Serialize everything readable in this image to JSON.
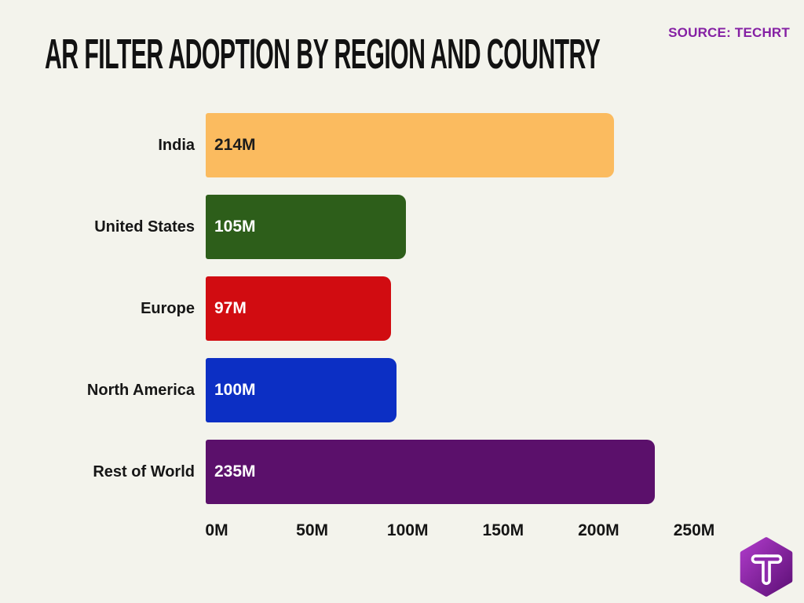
{
  "page": {
    "title": "AR FILTER ADOPTION BY REGION AND COUNTRY",
    "source_label": "SOURCE: TECHRT",
    "background_color": "#F3F3EC",
    "title_color": "#121212",
    "source_color": "#8520A4"
  },
  "chart_data": {
    "type": "bar",
    "orientation": "horizontal",
    "title": "AR FILTER ADOPTION BY REGION AND COUNTRY",
    "categories": [
      "India",
      "United States",
      "Europe",
      "North America",
      "Rest of World"
    ],
    "values": [
      214,
      105,
      97,
      100,
      235
    ],
    "value_labels": [
      "214M",
      "105M",
      "97M",
      "100M",
      "235M"
    ],
    "bar_colors": [
      "#FBBB5F",
      "#2D5E1A",
      "#D10C11",
      "#0C2FC4",
      "#5B106B"
    ],
    "value_label_colors": [
      "#1C1C1C",
      "#FFFFFF",
      "#FFFFFF",
      "#FFFFFF",
      "#FFFFFF"
    ],
    "unit": "M",
    "xlabel": "",
    "ylabel": "",
    "xlim": [
      0,
      250
    ],
    "x_ticks": [
      "0M",
      "50M",
      "100M",
      "150M",
      "200M",
      "250M"
    ],
    "x_tick_values": [
      0,
      50,
      100,
      150,
      200,
      250
    ],
    "grid": false,
    "legend": false,
    "value_labels_inside_bar": true
  },
  "logo": {
    "name": "techrt-hexagon-logo",
    "letter": "T",
    "gradient_start": "#AE3BC9",
    "gradient_end": "#5E1077",
    "letter_outline_color": "#FFFFFF",
    "letter_inner_color": "#8E2AAD"
  }
}
